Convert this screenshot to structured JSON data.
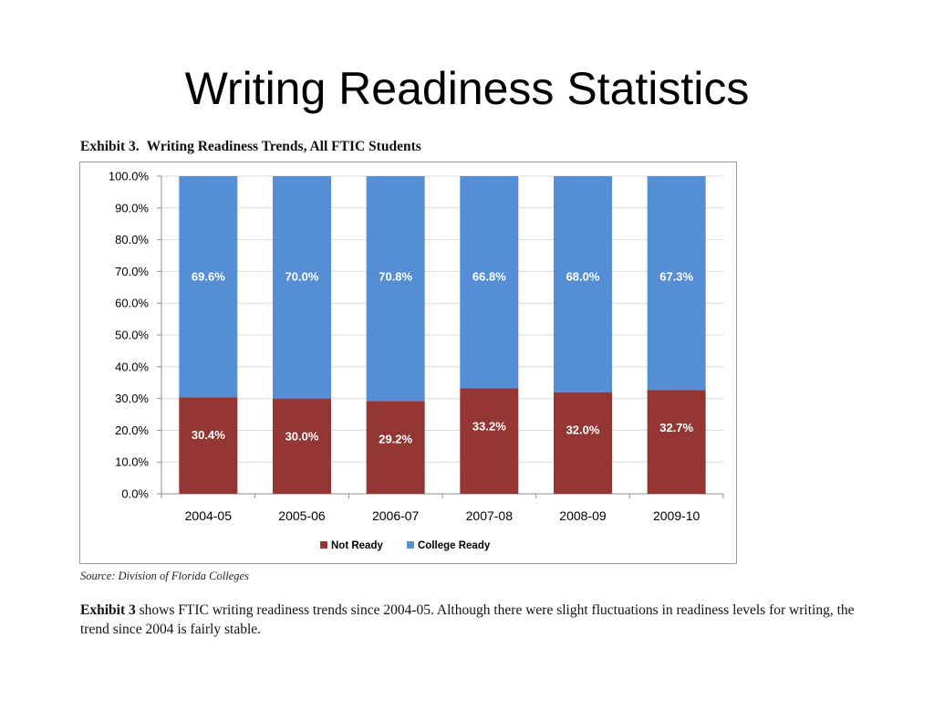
{
  "slide": {
    "title": "Writing Readiness Statistics"
  },
  "exhibit": {
    "label": "Exhibit 3.",
    "title": "Writing Readiness Trends, All FTIC Students",
    "source": "Source: Division of Florida Colleges",
    "description_lead": "Exhibit 3",
    "description_text": " shows FTIC writing readiness trends since 2004-05.  Although there were slight fluctuations in readiness levels for writing, the trend since 2004 is fairly stable."
  },
  "colors": {
    "not_ready": "#943634",
    "college_ready": "#558ED5",
    "gridline": "#d9d9d9",
    "axis": "#8c8c8c"
  },
  "chart_data": {
    "type": "bar",
    "stacked": true,
    "categories": [
      "2004-05",
      "2005-06",
      "2006-07",
      "2007-08",
      "2008-09",
      "2009-10"
    ],
    "series": [
      {
        "name": "Not Ready",
        "values": [
          30.4,
          30.0,
          29.2,
          33.2,
          32.0,
          32.7
        ],
        "labels": [
          "30.4%",
          "30.0%",
          "29.2%",
          "33.2%",
          "32.0%",
          "32.7%"
        ]
      },
      {
        "name": "College Ready",
        "values": [
          69.6,
          70.0,
          70.8,
          66.8,
          68.0,
          67.3
        ],
        "labels": [
          "69.6%",
          "70.0%",
          "70.8%",
          "66.8%",
          "68.0%",
          "67.3%"
        ]
      }
    ],
    "ylim": [
      0,
      100
    ],
    "yticks": [
      "0.0%",
      "10.0%",
      "20.0%",
      "30.0%",
      "40.0%",
      "50.0%",
      "60.0%",
      "70.0%",
      "80.0%",
      "90.0%",
      "100.0%"
    ],
    "grid": true,
    "legend_position": "bottom"
  }
}
